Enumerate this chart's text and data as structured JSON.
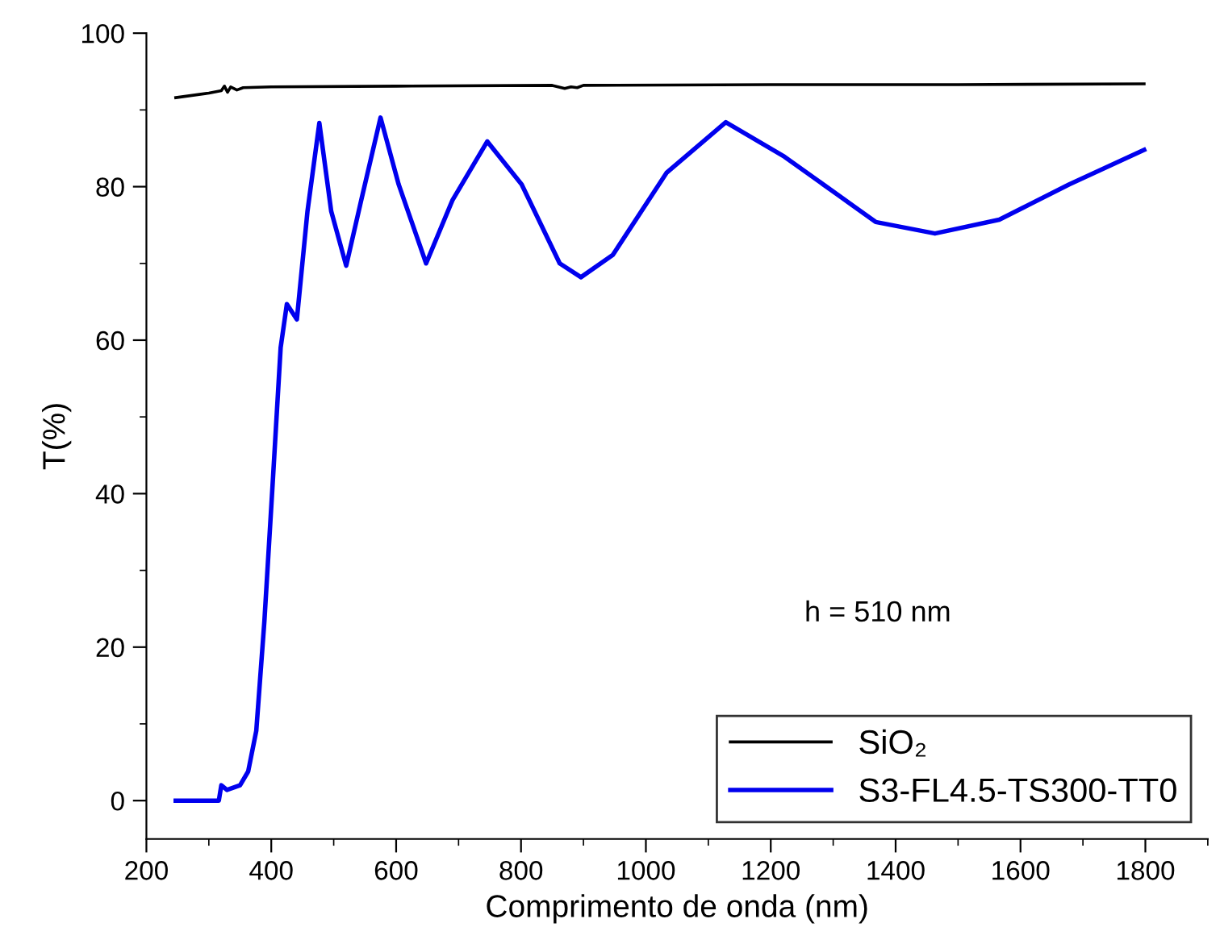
{
  "chart_data": {
    "type": "line",
    "xlabel": "Comprimento de onda (nm)",
    "ylabel": "T(%)",
    "xlim": [
      200,
      1900
    ],
    "xticks": [
      200,
      400,
      600,
      800,
      1000,
      1200,
      1400,
      1600,
      1800
    ],
    "ylim": [
      -5,
      100
    ],
    "yticks": [
      0,
      20,
      40,
      60,
      80,
      100
    ],
    "grid": false,
    "legend": "bottom right",
    "marker": "none",
    "line_style": "solid",
    "annotations": [
      "h = 510 nm"
    ],
    "series": [
      {
        "name": "SiO₂",
        "color": "#000000",
        "x": [
          247,
          300,
          320,
          325,
          330,
          335,
          345,
          355,
          400,
          600,
          850,
          870,
          880,
          890,
          900,
          1200,
          1500,
          1798
        ],
        "values": [
          91.6,
          92.2,
          92.5,
          93.1,
          92.3,
          93.0,
          92.6,
          92.9,
          93.0,
          93.1,
          93.2,
          92.8,
          93.0,
          92.9,
          93.2,
          93.3,
          93.3,
          93.4
        ]
      },
      {
        "name": "S3-FL4.5-TS300-TT0",
        "color": "#0000ee",
        "x": [
          247,
          316,
          320,
          329,
          350,
          363,
          376,
          389,
          402,
          415,
          425,
          441,
          458,
          477,
          496,
          520,
          544,
          575,
          604,
          648,
          690,
          746,
          801,
          862,
          896,
          947,
          1033,
          1128,
          1222,
          1308,
          1368,
          1463,
          1566,
          1678,
          1798
        ],
        "values": [
          0,
          0,
          2.0,
          1.4,
          2.0,
          3.8,
          9.1,
          23.4,
          41,
          59,
          64.7,
          62.7,
          76.8,
          88.3,
          76.8,
          69.7,
          78.2,
          89.0,
          80.3,
          70.0,
          78.2,
          85.9,
          80.3,
          70.0,
          68.2,
          71.1,
          81.8,
          88.4,
          83.9,
          78.9,
          75.4,
          73.9,
          75.7,
          80.3,
          84.8
        ]
      }
    ]
  }
}
